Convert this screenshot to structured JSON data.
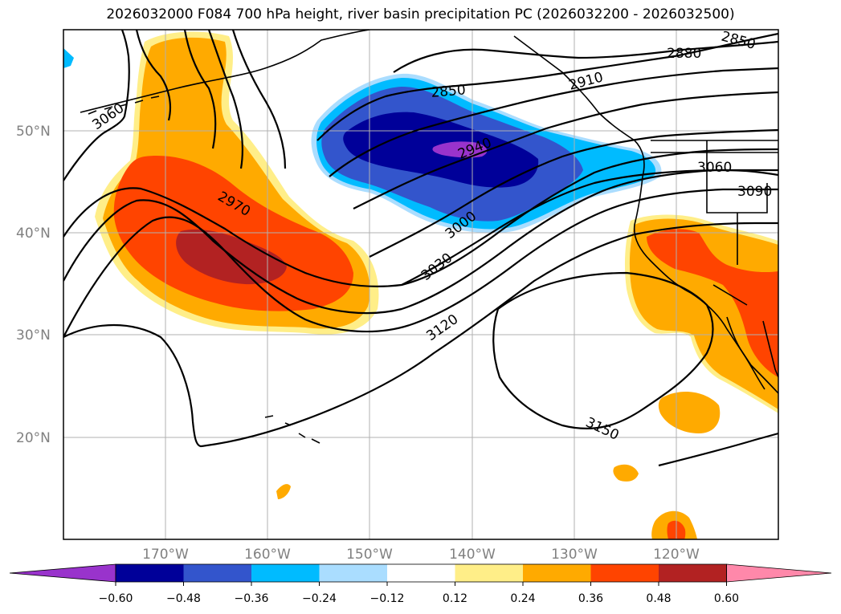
{
  "title": "2026032000 F084 700 hPa height, river basin precipitation PC (2026032200 - 2026032500)",
  "map": {
    "projection": "cylindrical",
    "lon_range": [
      -180,
      -110
    ],
    "lat_range": [
      10,
      60
    ],
    "lat_ticks": [
      {
        "value": 50,
        "label": "50°N"
      },
      {
        "value": 40,
        "label": "40°N"
      },
      {
        "value": 30,
        "label": "30°N"
      },
      {
        "value": 20,
        "label": "20°N"
      }
    ],
    "lon_ticks": [
      {
        "value": -170,
        "label": "170°W"
      },
      {
        "value": -160,
        "label": "160°W"
      },
      {
        "value": -150,
        "label": "150°W"
      },
      {
        "value": -140,
        "label": "140°W"
      },
      {
        "value": -130,
        "label": "130°W"
      },
      {
        "value": -120,
        "label": "120°W"
      }
    ],
    "grid_color": "#b0b0b0",
    "contour_labels": [
      "3060",
      "2970",
      "2850",
      "2940",
      "3000",
      "3030",
      "3120",
      "2880",
      "2910",
      "2850",
      "3060",
      "3090",
      "3150"
    ]
  },
  "colorbar": {
    "colors": [
      "#9933cc",
      "#000099",
      "#3355cc",
      "#00bbff",
      "#aaddff",
      "#ffffff",
      "#ffee88",
      "#ffaa00",
      "#ff4400",
      "#b22222",
      "#ff88aa"
    ],
    "tick_labels": [
      "−0.60",
      "−0.48",
      "−0.36",
      "−0.24",
      "−0.12",
      "0.12",
      "0.24",
      "0.36",
      "0.48",
      "0.60"
    ]
  },
  "chart_data": {
    "type": "heatmap",
    "title": "2026032000 F084 700 hPa height, river basin precipitation PC (2026032200 - 2026032500)",
    "variable_fill": "river basin precipitation PC",
    "variable_contour": "700 hPa height",
    "contour_levels": [
      2850,
      2880,
      2910,
      2940,
      2970,
      3000,
      3030,
      3060,
      3090,
      3120,
      3150
    ],
    "colorbar_levels": [
      -0.6,
      -0.48,
      -0.36,
      -0.24,
      -0.12,
      0.12,
      0.24,
      0.36,
      0.48,
      0.6
    ],
    "xlim": [
      -180,
      -110
    ],
    "ylim": [
      10,
      60
    ]
  }
}
